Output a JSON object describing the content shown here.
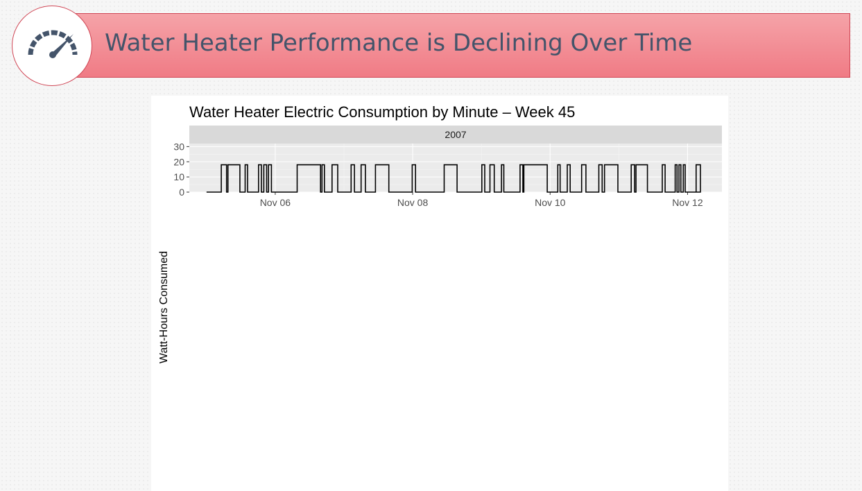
{
  "slide": {
    "title": "Water Heater Performance is Declining Over Time",
    "accent_color": "#f07b85",
    "border_color": "#d04655",
    "title_color": "#44546a",
    "icon": "speedometer-icon"
  },
  "chart_data": {
    "type": "line",
    "title": "Water Heater Electric Consumption by Minute – Week 45",
    "facet_label": "2007",
    "xlabel": "",
    "ylabel": "Watt-Hours Consumed",
    "ylim": [
      0,
      32
    ],
    "yticks": [
      0,
      10,
      20,
      30
    ],
    "xlim": [
      "2007-11-04T18:00",
      "2007-11-12T12:00"
    ],
    "xticks": [
      {
        "value": "2007-11-06",
        "label": "Nov 06"
      },
      {
        "value": "2007-11-08",
        "label": "Nov 08"
      },
      {
        "value": "2007-11-10",
        "label": "Nov 10"
      },
      {
        "value": "2007-11-12",
        "label": "Nov 12"
      }
    ],
    "grid": true,
    "series": [
      {
        "color": "#000000",
        "on_level": 18,
        "off_level": 0,
        "start": "2007-11-05T00:00",
        "end": "2007-11-12T00:00",
        "on_periods": [
          [
            "2007-11-05T05:10",
            "2007-11-05T07:00"
          ],
          [
            "2007-11-05T07:30",
            "2007-11-05T11:40"
          ],
          [
            "2007-11-05T13:30",
            "2007-11-05T14:20"
          ],
          [
            "2007-11-05T18:10",
            "2007-11-05T19:10"
          ],
          [
            "2007-11-05T20:00",
            "2007-11-05T21:00"
          ],
          [
            "2007-11-05T21:40",
            "2007-11-05T22:40"
          ],
          [
            "2007-11-06T07:40",
            "2007-11-06T15:50"
          ],
          [
            "2007-11-06T16:20",
            "2007-11-06T17:10"
          ],
          [
            "2007-11-06T19:50",
            "2007-11-06T21:50"
          ],
          [
            "2007-11-07T02:30",
            "2007-11-07T03:40"
          ],
          [
            "2007-11-07T06:00",
            "2007-11-07T07:30"
          ],
          [
            "2007-11-07T11:00",
            "2007-11-07T15:40"
          ],
          [
            "2007-11-07T23:50",
            "2007-11-08T01:00"
          ],
          [
            "2007-11-08T11:00",
            "2007-11-08T15:30"
          ],
          [
            "2007-11-09T00:10",
            "2007-11-09T01:10"
          ],
          [
            "2007-11-09T03:00",
            "2007-11-09T04:30"
          ],
          [
            "2007-11-09T07:00",
            "2007-11-09T07:50"
          ],
          [
            "2007-11-09T13:30",
            "2007-11-09T14:30"
          ],
          [
            "2007-11-09T14:50",
            "2007-11-09T23:00"
          ],
          [
            "2007-11-10T02:40",
            "2007-11-10T03:30"
          ],
          [
            "2007-11-10T06:00",
            "2007-11-10T07:00"
          ],
          [
            "2007-11-10T11:00",
            "2007-11-10T12:30"
          ],
          [
            "2007-11-10T17:00",
            "2007-11-10T18:10"
          ],
          [
            "2007-11-10T19:00",
            "2007-11-10T23:40"
          ],
          [
            "2007-11-11T04:20",
            "2007-11-11T05:30"
          ],
          [
            "2007-11-11T06:00",
            "2007-11-11T10:00"
          ],
          [
            "2007-11-11T15:10",
            "2007-11-11T16:10"
          ],
          [
            "2007-11-11T19:40",
            "2007-11-11T20:20"
          ],
          [
            "2007-11-11T21:00",
            "2007-11-11T21:40"
          ],
          [
            "2007-11-11T22:30",
            "2007-11-11T23:10"
          ],
          [
            "2007-11-12T03:00",
            "2007-11-12T04:30"
          ]
        ]
      }
    ]
  }
}
